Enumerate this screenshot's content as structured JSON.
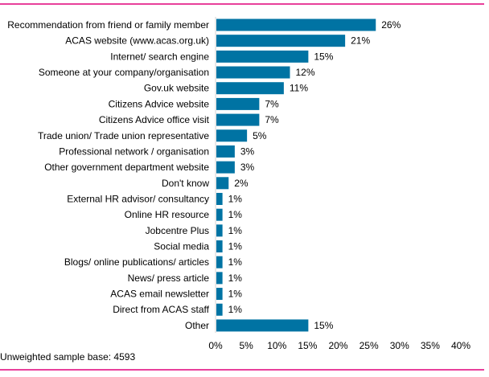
{
  "chart_data": {
    "type": "bar",
    "orientation": "horizontal",
    "categories": [
      "Recommendation from friend or family member",
      "ACAS website (www.acas.org.uk)",
      "Internet/ search engine",
      "Someone at your company/organisation",
      "Gov.uk website",
      "Citizens Advice website",
      "Citizens Advice office visit",
      "Trade union/ Trade union representative",
      "Professional network / organisation",
      "Other government department website",
      "Don't know",
      "External HR advisor/ consultancy",
      "Online HR resource",
      "Jobcentre Plus",
      "Social media",
      "Blogs/ online publications/ articles",
      "News/ press article",
      "ACAS email newsletter",
      "Direct from ACAS staff",
      "Other"
    ],
    "values": [
      26,
      21,
      15,
      12,
      11,
      7,
      7,
      5,
      3,
      3,
      2,
      1,
      1,
      1,
      1,
      1,
      1,
      1,
      1,
      15
    ],
    "data_labels": [
      "26%",
      "21%",
      "15%",
      "12%",
      "11%",
      "7%",
      "7%",
      "5%",
      "3%",
      "3%",
      "2%",
      "1%",
      "1%",
      "1%",
      "1%",
      "1%",
      "1%",
      "1%",
      "1%",
      "15%"
    ],
    "xlim": [
      0,
      40
    ],
    "xticks": [
      "0%",
      "5%",
      "10%",
      "15%",
      "20%",
      "25%",
      "30%",
      "35%",
      "40%"
    ],
    "grid": false,
    "bar_color": "#0073a3",
    "rule_color": "#e0007a"
  },
  "footnote": "Unweighted sample base: 4593"
}
